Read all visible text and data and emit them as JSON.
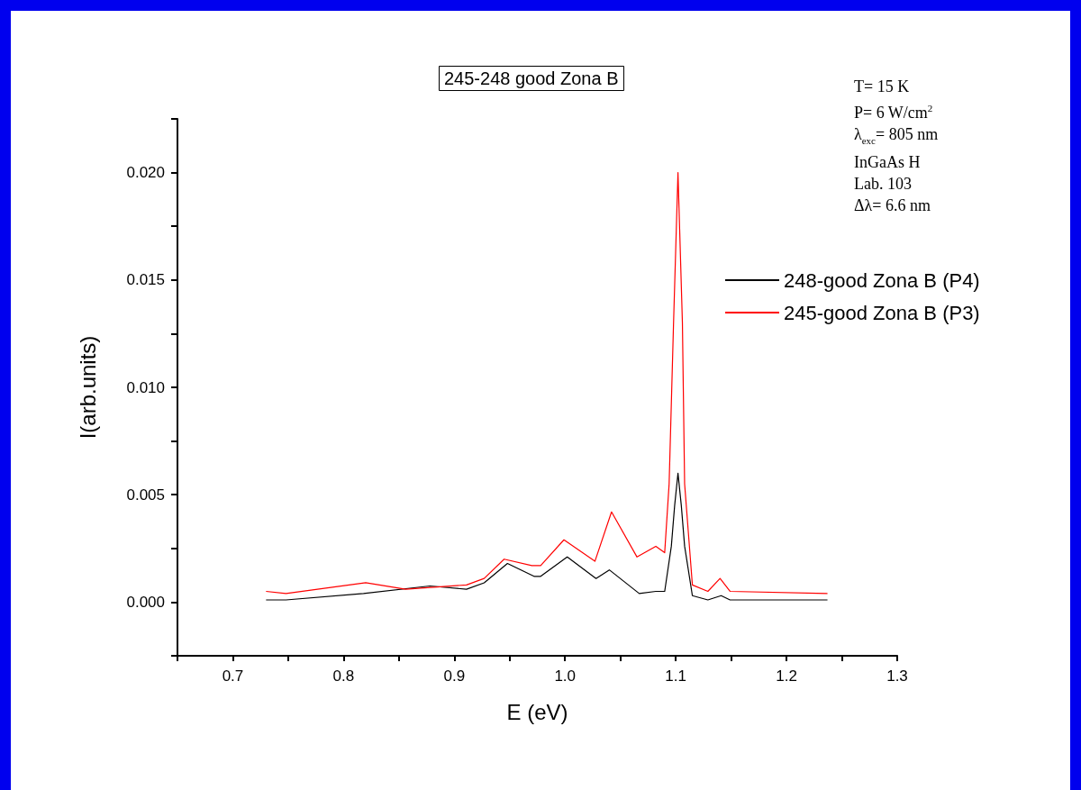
{
  "chart_data": {
    "type": "line",
    "title": "245-248 good Zona B",
    "xlabel": "E (eV)",
    "ylabel": "I(arb.units)",
    "annotations": [
      "T= 15 K",
      "P= 6 W/cm$^{2}$",
      "λ$_{exc}$= 805 nm",
      "InGaAs H",
      "Lab. 103",
      "Δλ= 6.6 nm"
    ],
    "xlim": [
      0.65,
      1.3
    ],
    "xticks": [
      {
        "value": 0.65,
        "label": null
      },
      {
        "value": 0.7,
        "label": "0.7"
      },
      {
        "value": 0.75,
        "label": null
      },
      {
        "value": 0.8,
        "label": "0.8"
      },
      {
        "value": 0.85,
        "label": null
      },
      {
        "value": 0.9,
        "label": "0.9"
      },
      {
        "value": 0.95,
        "label": null
      },
      {
        "value": 1.0,
        "label": "1.0"
      },
      {
        "value": 1.05,
        "label": null
      },
      {
        "value": 1.1,
        "label": "1.1"
      },
      {
        "value": 1.15,
        "label": null
      },
      {
        "value": 1.2,
        "label": "1.2"
      },
      {
        "value": 1.25,
        "label": null
      },
      {
        "value": 1.3,
        "label": "1.3"
      }
    ],
    "ylim": [
      -0.0025,
      0.0225
    ],
    "yticks": [
      {
        "value": -0.0025,
        "label": null
      },
      {
        "value": 0,
        "label": "0.000"
      },
      {
        "value": 0.0025,
        "label": null
      },
      {
        "value": 0.005,
        "label": "0.005"
      },
      {
        "value": 0.0075,
        "label": null
      },
      {
        "value": 0.01,
        "label": "0.010"
      },
      {
        "value": 0.0125,
        "label": null
      },
      {
        "value": 0.015,
        "label": "0.015"
      },
      {
        "value": 0.0175,
        "label": null
      },
      {
        "value": 0.02,
        "label": "0.020"
      },
      {
        "value": 0.0225,
        "label": null
      }
    ],
    "grid": false,
    "legend": "right",
    "marker": "none",
    "line_style": "solid",
    "series": [
      {
        "name": "248-good Zona B (P4)",
        "color": "#000000",
        "x": [
          0.73,
          0.748,
          0.818,
          0.878,
          0.911,
          0.927,
          0.948,
          0.972,
          0.978,
          1.002,
          1.028,
          1.04,
          1.067,
          1.082,
          1.09,
          1.096,
          1.099,
          1.102,
          1.105,
          1.108,
          1.115,
          1.129,
          1.141,
          1.149,
          1.237
        ],
        "values": [
          0.0001,
          0.0001,
          0.0004,
          0.00075,
          0.0006,
          0.0009,
          0.0018,
          0.0012,
          0.0012,
          0.0021,
          0.0011,
          0.0015,
          0.0004,
          0.0005,
          0.0005,
          0.0026,
          0.0045,
          0.006,
          0.0045,
          0.0026,
          0.0003,
          0.0001,
          0.0003,
          0.0001,
          0.0001
        ]
      },
      {
        "name": "245-good Zona B (P3)",
        "color": "#ff0000",
        "x": [
          0.73,
          0.748,
          0.82,
          0.856,
          0.911,
          0.927,
          0.945,
          0.97,
          0.978,
          0.999,
          1.027,
          1.042,
          1.065,
          1.082,
          1.09,
          1.094,
          1.098,
          1.102,
          1.106,
          1.108,
          1.115,
          1.129,
          1.14,
          1.149,
          1.237
        ],
        "values": [
          0.0005,
          0.0004,
          0.0009,
          0.0006,
          0.0008,
          0.0011,
          0.002,
          0.0017,
          0.0017,
          0.0029,
          0.0019,
          0.0042,
          0.0021,
          0.0026,
          0.0023,
          0.0055,
          0.013,
          0.02,
          0.013,
          0.0055,
          0.0008,
          0.0005,
          0.0011,
          0.0005,
          0.0004
        ]
      }
    ]
  }
}
